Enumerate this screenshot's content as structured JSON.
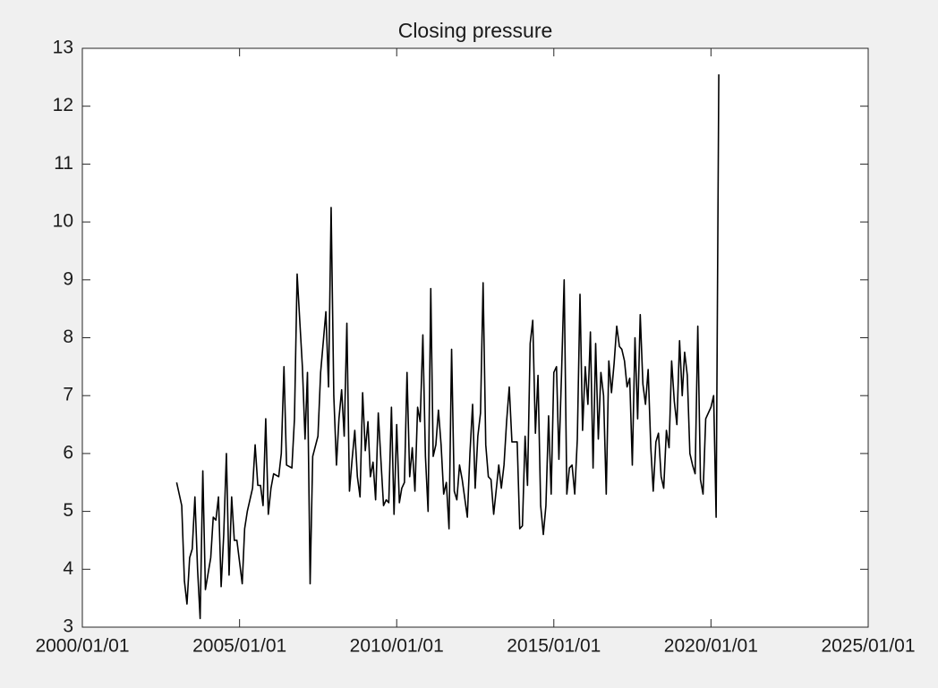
{
  "chart_data": {
    "type": "line",
    "title": "Closing pressure",
    "x": [
      "2003/01/01",
      "2003/03/01",
      "2003/04/01",
      "2003/05/01",
      "2003/06/01",
      "2003/07/01",
      "2003/08/01",
      "2003/09/01",
      "2003/10/01",
      "2003/11/01",
      "2003/12/01",
      "2004/02/01",
      "2004/03/01",
      "2004/04/01",
      "2004/05/01",
      "2004/06/01",
      "2004/07/01",
      "2004/08/01",
      "2004/09/01",
      "2004/10/01",
      "2004/11/01",
      "2004/12/01",
      "2005/02/01",
      "2005/03/01",
      "2005/04/01",
      "2005/06/01",
      "2005/07/01",
      "2005/08/01",
      "2005/09/01",
      "2005/10/01",
      "2005/11/01",
      "2005/12/01",
      "2006/01/01",
      "2006/02/01",
      "2006/04/01",
      "2006/05/01",
      "2006/06/01",
      "2006/07/01",
      "2006/09/01",
      "2006/10/01",
      "2006/11/01",
      "2007/01/01",
      "2007/02/01",
      "2007/03/01",
      "2007/04/01",
      "2007/05/01",
      "2007/07/01",
      "2007/08/01",
      "2007/10/01",
      "2007/11/01",
      "2007/12/01",
      "2008/01/01",
      "2008/02/01",
      "2008/03/01",
      "2008/04/01",
      "2008/05/01",
      "2008/06/01",
      "2008/07/01",
      "2008/08/01",
      "2008/09/01",
      "2008/10/01",
      "2008/11/01",
      "2008/12/01",
      "2009/01/01",
      "2009/02/01",
      "2009/03/01",
      "2009/04/01",
      "2009/05/01",
      "2009/06/01",
      "2009/07/01",
      "2009/08/01",
      "2009/09/01",
      "2009/10/01",
      "2009/11/01",
      "2009/12/01",
      "2010/01/01",
      "2010/02/01",
      "2010/03/01",
      "2010/04/01",
      "2010/05/01",
      "2010/06/01",
      "2010/07/01",
      "2010/08/01",
      "2010/09/01",
      "2010/10/01",
      "2010/11/01",
      "2010/12/01",
      "2011/01/01",
      "2011/02/01",
      "2011/03/01",
      "2011/04/01",
      "2011/05/01",
      "2011/06/01",
      "2011/07/01",
      "2011/08/01",
      "2011/09/01",
      "2011/10/01",
      "2011/11/01",
      "2011/12/01",
      "2012/01/01",
      "2012/02/01",
      "2012/04/01",
      "2012/05/01",
      "2012/06/01",
      "2012/07/01",
      "2012/08/01",
      "2012/09/01",
      "2012/10/01",
      "2012/11/01",
      "2012/12/01",
      "2013/01/01",
      "2013/02/01",
      "2013/03/01",
      "2013/04/01",
      "2013/05/01",
      "2013/06/01",
      "2013/07/01",
      "2013/08/01",
      "2013/09/01",
      "2013/11/01",
      "2013/12/01",
      "2014/01/01",
      "2014/02/01",
      "2014/03/01",
      "2014/04/01",
      "2014/05/01",
      "2014/06/01",
      "2014/07/01",
      "2014/08/01",
      "2014/09/01",
      "2014/10/01",
      "2014/11/01",
      "2014/12/01",
      "2015/01/01",
      "2015/02/01",
      "2015/03/01",
      "2015/04/01",
      "2015/05/01",
      "2015/06/01",
      "2015/07/01",
      "2015/08/01",
      "2015/09/01",
      "2015/10/01",
      "2015/11/01",
      "2015/12/01",
      "2016/01/01",
      "2016/02/01",
      "2016/03/01",
      "2016/04/01",
      "2016/05/01",
      "2016/06/01",
      "2016/07/01",
      "2016/08/01",
      "2016/09/01",
      "2016/10/01",
      "2016/11/01",
      "2016/12/01",
      "2017/01/01",
      "2017/02/01",
      "2017/03/01",
      "2017/04/01",
      "2017/05/01",
      "2017/06/01",
      "2017/07/01",
      "2017/08/01",
      "2017/09/01",
      "2017/10/01",
      "2017/11/01",
      "2017/12/01",
      "2018/01/01",
      "2018/02/01",
      "2018/03/01",
      "2018/04/01",
      "2018/05/01",
      "2018/06/01",
      "2018/07/01",
      "2018/08/01",
      "2018/09/01",
      "2018/10/01",
      "2018/11/01",
      "2018/12/01",
      "2019/01/01",
      "2019/02/01",
      "2019/03/01",
      "2019/04/01",
      "2019/05/01",
      "2019/06/01",
      "2019/07/01",
      "2019/08/01",
      "2019/09/01",
      "2019/10/01",
      "2019/11/01",
      "2020/01/01",
      "2020/02/01",
      "2020/03/01",
      "2020/04/01"
    ],
    "series": [
      {
        "color": "#000000",
        "values": [
          5.5,
          5.1,
          3.8,
          3.4,
          4.2,
          4.35,
          5.25,
          4.0,
          3.15,
          5.7,
          3.65,
          4.2,
          4.9,
          4.85,
          5.25,
          3.7,
          4.6,
          6.0,
          3.9,
          5.25,
          4.5,
          4.5,
          3.75,
          4.7,
          5.0,
          5.4,
          6.15,
          5.45,
          5.45,
          5.1,
          6.6,
          4.95,
          5.4,
          5.65,
          5.6,
          6.0,
          7.5,
          5.8,
          5.75,
          6.6,
          9.1,
          7.5,
          6.25,
          7.4,
          3.75,
          5.95,
          6.3,
          7.4,
          8.45,
          7.15,
          10.25,
          7.0,
          5.8,
          6.6,
          7.1,
          6.3,
          8.25,
          5.35,
          5.9,
          6.4,
          5.6,
          5.25,
          7.05,
          6.05,
          6.55,
          5.6,
          5.85,
          5.2,
          6.7,
          5.9,
          5.1,
          5.2,
          5.15,
          6.8,
          4.95,
          6.5,
          5.15,
          5.4,
          5.5,
          7.4,
          5.6,
          6.1,
          5.35,
          6.8,
          6.55,
          8.05,
          5.95,
          5.0,
          8.85,
          5.95,
          6.15,
          6.75,
          6.15,
          5.3,
          5.5,
          4.7,
          7.8,
          5.35,
          5.2,
          5.8,
          5.55,
          4.9,
          6.0,
          6.85,
          5.4,
          6.3,
          6.7,
          8.95,
          6.15,
          5.6,
          5.55,
          4.95,
          5.35,
          5.8,
          5.4,
          5.8,
          6.55,
          7.15,
          6.2,
          6.2,
          4.7,
          4.75,
          6.3,
          5.45,
          7.9,
          8.3,
          6.35,
          7.35,
          5.1,
          4.6,
          5.1,
          6.65,
          5.3,
          7.4,
          7.5,
          5.9,
          7.4,
          9.0,
          5.3,
          5.75,
          5.8,
          5.3,
          6.25,
          8.75,
          6.4,
          7.5,
          6.85,
          8.1,
          5.75,
          7.9,
          6.25,
          7.4,
          7.0,
          5.3,
          7.6,
          7.05,
          7.55,
          8.2,
          7.85,
          7.8,
          7.6,
          7.15,
          7.3,
          5.8,
          8.0,
          6.6,
          8.4,
          7.2,
          6.85,
          7.45,
          6.1,
          5.35,
          6.2,
          6.35,
          5.6,
          5.4,
          6.4,
          6.1,
          7.6,
          6.9,
          6.5,
          7.95,
          7.0,
          7.75,
          7.35,
          6.0,
          5.8,
          5.65,
          8.2,
          5.55,
          5.3,
          6.6,
          6.8,
          7.0,
          4.9,
          12.55
        ]
      }
    ],
    "xlim": [
      "2000/01/01",
      "2025/01/01"
    ],
    "xticks": [
      "2000/01/01",
      "2005/01/01",
      "2010/01/01",
      "2015/01/01",
      "2020/01/01",
      "2025/01/01"
    ],
    "ylim": [
      3,
      13
    ],
    "yticks": [
      3,
      4,
      5,
      6,
      7,
      8,
      9,
      10,
      11,
      12,
      13
    ],
    "grid": false
  }
}
